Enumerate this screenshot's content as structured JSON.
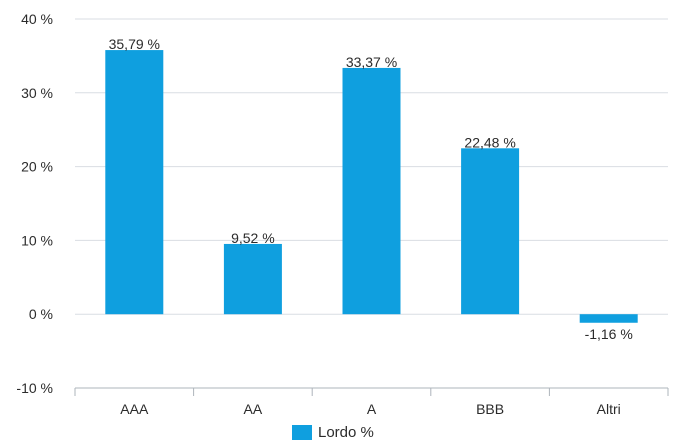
{
  "chart_data": {
    "type": "bar",
    "categories": [
      "AAA",
      "AA",
      "A",
      "BBB",
      "Altri"
    ],
    "series": [
      {
        "name": "Lordo %",
        "values": [
          35.79,
          9.52,
          33.37,
          22.48,
          -1.16
        ]
      }
    ],
    "data_labels": [
      "35,79 %",
      "9,52 %",
      "33,37 %",
      "22,48 %",
      "-1,16 %"
    ],
    "y_ticks": [
      -10,
      0,
      10,
      20,
      30,
      40
    ],
    "y_tick_labels": [
      "-10 %",
      "0 %",
      "10 %",
      "20 %",
      "30 %",
      "40 %"
    ],
    "ylim": [
      -10,
      40
    ],
    "grid": true,
    "legend_position": "bottom-center",
    "colors": {
      "bar": "#0f9fdf",
      "grid": "#d9dde3",
      "axis": "#aeb4bb",
      "text": "#2b2b2b"
    }
  }
}
